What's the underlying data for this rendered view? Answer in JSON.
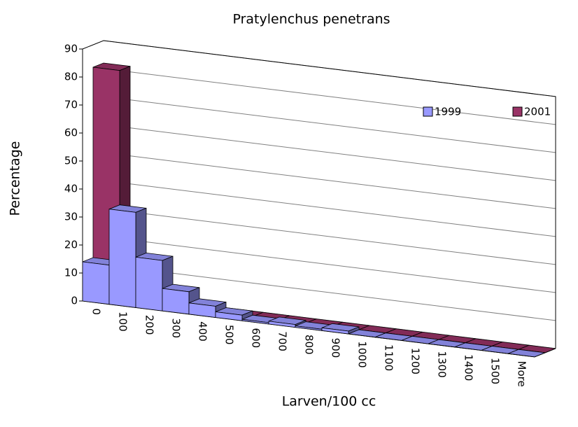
{
  "chart_data": {
    "type": "bar3d",
    "title": "Pratylenchus penetrans",
    "x_label": "Larven/100 cc",
    "y_label": "Percentage",
    "categories": [
      "0",
      "100",
      "200",
      "300",
      "400",
      "500",
      "600",
      "700",
      "800",
      "900",
      "1000",
      "1100",
      "1200",
      "1300",
      "1400",
      "1500",
      "More"
    ],
    "series": [
      {
        "name": "1999",
        "color": "#9999ff",
        "values": [
          14,
          34,
          18,
          8,
          4,
          2,
          0.5,
          1,
          0.5,
          1,
          0,
          0,
          0,
          0,
          0,
          0,
          0
        ]
      },
      {
        "name": "2001",
        "color": "#993366",
        "values": [
          82,
          0,
          0,
          0,
          0,
          0,
          0,
          0,
          0,
          0,
          0,
          0,
          0,
          0,
          0,
          0,
          0
        ]
      }
    ],
    "ylim": [
      0,
      90
    ],
    "yticks": [
      0,
      10,
      20,
      30,
      40,
      50,
      60,
      70,
      80,
      90
    ],
    "grid": true,
    "legend": "top-right"
  }
}
